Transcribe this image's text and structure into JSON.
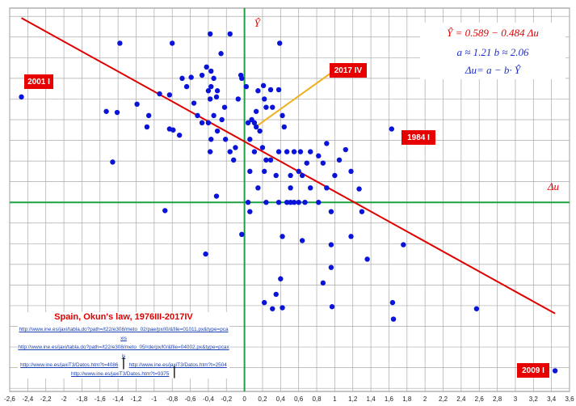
{
  "chart_data": {
    "type": "scatter",
    "title": "Spain, Okun's law, 1976III-2017IV",
    "x_label": "Δu",
    "y_label": "Ŷ",
    "equation": "Ŷ = 0.589 − 0.484 Δu",
    "parameters": "a ≈ 1.21   b ≈ 2.06",
    "identity": "Δu= a − b· Ŷ",
    "fit": {
      "intercept": 0.589,
      "slope": -0.484
    },
    "annotations": [
      "2001 I",
      "2017 IV",
      "1984 I",
      "2009 I"
    ],
    "sources": [
      "http://www.ine.es/jaxi/tabla.do?path=/t22/e308/meto_02/pae/px/l0/&file=01011.px&type=pcaxis",
      "http://www.ine.es/jaxi/tabla.do?path=/t22/e308/meto_05/rde/px/l0/&file=04002.px&type=pcaxis",
      "http://www.ine.es/jaxiT3/Datos.htm?t=4086",
      "http://www.ine.es/jaxiT3/Datos.htm?t=2504",
      "http://www.ine.es/jaxiT3/Datos.htm?t=9375"
    ],
    "color": "#0a14d8",
    "line_color": "#e00000",
    "axis_color": "#1fa045",
    "grid": true,
    "x": [
      -2.47,
      -1.38,
      -1.53,
      -1.41,
      -1.46,
      -1.19,
      -1.08,
      -1.06,
      -0.94,
      -0.83,
      -0.8,
      -0.88,
      -0.83,
      -0.79,
      -0.72,
      -0.69,
      -0.64,
      -0.59,
      -0.56,
      -0.52,
      -0.47,
      -0.42,
      -0.4,
      -0.38,
      -0.37,
      -0.34,
      -0.31,
      -0.3,
      -0.26,
      -0.38,
      -0.16,
      -0.37,
      -0.47,
      -0.4,
      -0.38,
      -0.37,
      -0.34,
      -0.3,
      -0.25,
      -0.22,
      -0.21,
      -0.16,
      -0.12,
      -0.1,
      -0.04,
      -0.03,
      -0.07,
      0.02,
      0.04,
      0.08,
      0.11,
      0.13,
      0.15,
      0.17,
      0.21,
      0.22,
      0.24,
      0.29,
      0.31,
      0.38,
      0.39,
      0.42,
      0.44,
      0.06,
      0.11,
      0.2,
      0.29,
      0.38,
      0.47,
      0.55,
      0.62,
      0.73,
      0.35,
      0.51,
      0.24,
      0.22,
      0.15,
      0.06,
      0.04,
      0.24,
      0.38,
      0.47,
      0.51,
      0.55,
      0.6,
      0.67,
      0.82,
      -0.31,
      -0.43,
      -0.03,
      0.06,
      0.42,
      0.64,
      0.96,
      0.96,
      0.91,
      1.0,
      1.05,
      1.12,
      1.18,
      1.27,
      0.91,
      0.82,
      0.87,
      0.69,
      0.64,
      0.73,
      0.6,
      0.51,
      1.3,
      1.18,
      1.36,
      1.76,
      1.63,
      0.96,
      0.4,
      0.35,
      0.42,
      0.22,
      0.31,
      0.87,
      0.97,
      1.64,
      2.57,
      1.65,
      3.44,
      0.13
    ],
    "y": [
      1.02,
      1.54,
      0.88,
      0.87,
      0.39,
      0.95,
      0.73,
      0.84,
      1.05,
      1.04,
      1.54,
      -0.08,
      0.71,
      0.7,
      0.65,
      1.2,
      1.12,
      1.21,
      0.96,
      0.84,
      1.23,
      1.31,
      1.08,
      1.0,
      1.12,
      1.2,
      1.02,
      1.08,
      1.44,
      1.63,
      1.63,
      1.27,
      0.77,
      0.77,
      0.49,
      0.61,
      0.84,
      0.69,
      0.8,
      0.92,
      0.61,
      0.49,
      0.41,
      0.53,
      1.23,
      1.2,
      1.0,
      1.12,
      0.77,
      0.8,
      0.77,
      0.88,
      1.08,
      0.69,
      1.13,
      1.0,
      0.92,
      1.09,
      0.92,
      1.09,
      1.54,
      0.84,
      0.73,
      0.61,
      0.49,
      0.53,
      0.41,
      0.49,
      0.49,
      0.49,
      0.49,
      0.49,
      0.26,
      0.26,
      0.41,
      0.3,
      0.14,
      0.3,
      0,
      0,
      0,
      0,
      0,
      0,
      0,
      0,
      0,
      0.06,
      -0.5,
      -0.31,
      -0.09,
      -0.33,
      -0.37,
      -0.09,
      -0.41,
      0.14,
      0.26,
      0.41,
      0.51,
      0.3,
      0.13,
      0.57,
      0.45,
      0.38,
      0.38,
      0.26,
      0.14,
      0.3,
      0.14,
      -0.09,
      -0.33,
      -0.55,
      -0.41,
      0.71,
      -0.63,
      -0.74,
      -0.89,
      -1.02,
      -0.97,
      -1.03,
      -0.78,
      -1.01,
      -0.97,
      -1.03,
      -1.13,
      -1.63,
      0.73
    ],
    "xlim": [
      -2.6,
      3.6
    ],
    "ylim": [
      -1.83,
      1.88
    ],
    "xticks": [
      {
        "value": -2.6,
        "label": "-2,6"
      },
      {
        "value": -2.4,
        "label": "-2,4"
      },
      {
        "value": -2.2,
        "label": "-2,2"
      },
      {
        "value": -2,
        "label": "-2"
      },
      {
        "value": -1.8,
        "label": "-1,8"
      },
      {
        "value": -1.6,
        "label": "-1,6"
      },
      {
        "value": -1.4,
        "label": "-1,4"
      },
      {
        "value": -1.2,
        "label": "-1,2"
      },
      {
        "value": -1,
        "label": "-1"
      },
      {
        "value": -0.8,
        "label": "-0,8"
      },
      {
        "value": -0.6,
        "label": "-0,6"
      },
      {
        "value": -0.4,
        "label": "-0,4"
      },
      {
        "value": -0.2,
        "label": "-0,2"
      },
      0,
      {
        "value": 0.2,
        "label": "0,2"
      },
      {
        "value": 0.4,
        "label": "0,4"
      },
      {
        "value": 0.6,
        "label": "0,6"
      },
      {
        "value": 0.8,
        "label": "0,8"
      },
      1,
      {
        "value": 1.2,
        "label": "1,2"
      },
      {
        "value": 1.4,
        "label": "1,4"
      },
      {
        "value": 1.6,
        "label": "1,6"
      },
      {
        "value": 1.8,
        "label": "1,8"
      },
      2,
      {
        "value": 2.2,
        "label": "2,2"
      },
      {
        "value": 2.4,
        "label": "2,4"
      },
      {
        "value": 2.6,
        "label": "2,6"
      },
      {
        "value": 2.8,
        "label": "2,8"
      },
      3,
      {
        "value": 3.2,
        "label": "3,2"
      },
      {
        "value": 3.4,
        "label": "3,4"
      },
      {
        "value": 3.6,
        "label": "3,6"
      }
    ],
    "yticks": [
      -1.8,
      -1.6,
      -1.4,
      -1.2,
      -1,
      -0.8,
      -0.6,
      -0.4,
      -0.2,
      0,
      0.2,
      0.4,
      0.6,
      0.8,
      1,
      1.2,
      1.4,
      1.6,
      1.8
    ]
  }
}
